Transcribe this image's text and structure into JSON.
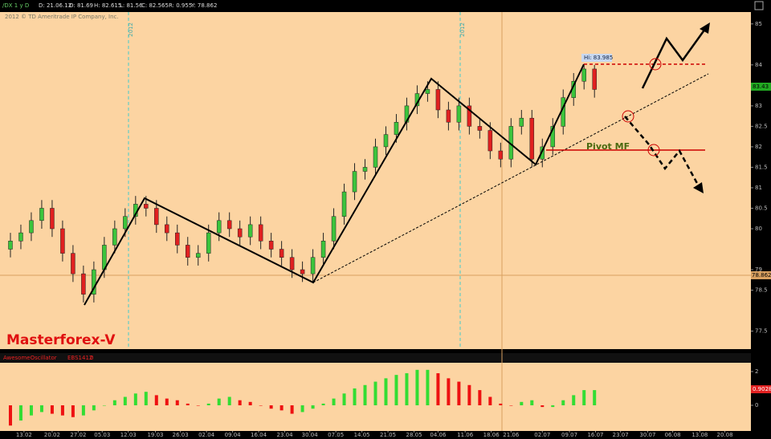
{
  "header": {
    "items": [
      "/DX 1 y D",
      "D: 21.06.12",
      "O: 81.69",
      "H: 82.615",
      "L: 81.56",
      "C: 82.565",
      "R: 0.955",
      "Y: 78.862"
    ],
    "copyright": "2012 © TD Ameritrade IP Company, Inc."
  },
  "price_labels": {
    "last": "83.43",
    "cursor": "78.862"
  },
  "annotations": {
    "brand": "Masterforex-V",
    "pivot": "Pivot MF",
    "high": "Hi: 83.985",
    "period_markers": [
      "2012",
      "2012"
    ]
  },
  "oscillator_header": [
    "AwesomeOscillator",
    "EBS1412",
    "0"
  ],
  "chart_data": [
    {
      "type": "candlestick",
      "up_color": "#3cc43c",
      "down_color": "#e02020",
      "x": [
        0,
        1,
        2,
        3,
        4,
        5,
        6,
        7,
        8,
        9,
        10,
        11,
        12,
        13,
        14,
        15,
        16,
        17,
        18,
        19,
        20,
        21,
        22,
        23,
        24,
        25,
        26,
        27,
        28,
        29,
        30,
        31,
        32,
        33,
        34,
        35,
        36,
        37,
        38,
        39,
        40,
        41,
        42,
        43,
        44,
        45,
        46,
        47,
        48,
        49,
        50,
        51,
        52,
        53,
        54,
        55,
        56
      ],
      "open": [
        79.5,
        79.7,
        79.9,
        80.2,
        80.5,
        80.0,
        79.4,
        78.9,
        78.4,
        79.0,
        79.6,
        80.0,
        80.3,
        80.6,
        80.5,
        80.1,
        79.9,
        79.6,
        79.3,
        79.4,
        79.9,
        80.2,
        80.0,
        79.8,
        80.1,
        79.7,
        79.5,
        79.3,
        79.0,
        78.9,
        79.3,
        79.7,
        80.3,
        80.9,
        81.4,
        81.5,
        82.0,
        82.3,
        82.6,
        83.0,
        83.3,
        83.4,
        82.9,
        82.6,
        83.0,
        82.5,
        82.4,
        81.9,
        81.7,
        82.5,
        82.7,
        81.7,
        82.0,
        82.5,
        83.2,
        83.6,
        83.9
      ],
      "high": [
        79.9,
        80.1,
        80.4,
        80.7,
        80.7,
        80.2,
        79.6,
        79.1,
        79.2,
        79.8,
        80.2,
        80.5,
        80.8,
        80.8,
        80.7,
        80.3,
        80.1,
        79.8,
        79.6,
        80.1,
        80.4,
        80.4,
        80.2,
        80.3,
        80.3,
        79.9,
        79.7,
        79.5,
        79.2,
        79.5,
        79.9,
        80.5,
        81.1,
        81.6,
        81.7,
        82.2,
        82.5,
        82.8,
        83.2,
        83.5,
        83.6,
        83.6,
        83.1,
        83.2,
        83.2,
        82.7,
        82.6,
        82.1,
        82.7,
        82.9,
        82.9,
        82.2,
        82.7,
        83.4,
        83.8,
        84.0,
        84.0
      ],
      "low": [
        79.3,
        79.5,
        79.7,
        80.0,
        79.8,
        79.2,
        78.7,
        78.2,
        78.2,
        78.8,
        79.4,
        79.8,
        80.1,
        80.3,
        79.9,
        79.7,
        79.4,
        79.1,
        79.1,
        79.2,
        79.7,
        79.8,
        79.6,
        79.6,
        79.5,
        79.3,
        79.1,
        78.8,
        78.7,
        78.7,
        79.1,
        79.5,
        80.1,
        80.7,
        81.2,
        81.3,
        81.8,
        82.1,
        82.4,
        82.8,
        83.1,
        82.7,
        82.4,
        82.4,
        82.3,
        82.2,
        81.7,
        81.5,
        81.5,
        82.3,
        81.5,
        81.5,
        81.8,
        82.3,
        83.0,
        83.4,
        83.2
      ],
      "close": [
        79.7,
        79.9,
        80.2,
        80.5,
        80.0,
        79.4,
        78.9,
        78.4,
        79.0,
        79.6,
        80.0,
        80.3,
        80.6,
        80.5,
        80.1,
        79.9,
        79.6,
        79.3,
        79.4,
        79.9,
        80.2,
        80.0,
        79.8,
        80.1,
        79.7,
        79.5,
        79.3,
        79.0,
        78.9,
        79.3,
        79.7,
        80.3,
        80.9,
        81.4,
        81.5,
        82.0,
        82.3,
        82.6,
        83.0,
        83.3,
        83.4,
        82.9,
        82.6,
        83.0,
        82.5,
        82.4,
        81.9,
        81.7,
        82.5,
        82.7,
        81.7,
        82.0,
        82.5,
        83.2,
        83.6,
        83.9,
        83.4
      ],
      "xlim": [
        -1,
        71
      ],
      "ylim": [
        77.1,
        85.29
      ],
      "yticks": [
        85,
        84,
        83,
        82.5,
        82,
        81.5,
        81,
        80.5,
        80,
        79,
        78.5,
        77.5
      ],
      "xticks": [
        {
          "value": 1.3,
          "label": "13.02"
        },
        {
          "value": 4.0,
          "label": "20.02"
        },
        {
          "value": 6.5,
          "label": "27.02"
        },
        {
          "value": 8.8,
          "label": "05.03"
        },
        {
          "value": 11.3,
          "label": "12.03"
        },
        {
          "value": 13.9,
          "label": "19.03"
        },
        {
          "value": 16.3,
          "label": "26.03"
        },
        {
          "value": 18.8,
          "label": "02.04"
        },
        {
          "value": 21.3,
          "label": "09.04"
        },
        {
          "value": 23.8,
          "label": "16.04"
        },
        {
          "value": 26.3,
          "label": "23.04"
        },
        {
          "value": 28.7,
          "label": "30.04"
        },
        {
          "value": 31.2,
          "label": "07.05"
        },
        {
          "value": 33.7,
          "label": "14.05"
        },
        {
          "value": 36.2,
          "label": "21.05"
        },
        {
          "value": 38.7,
          "label": "28.05"
        },
        {
          "value": 41.0,
          "label": "04.06"
        },
        {
          "value": 43.6,
          "label": "11.06"
        },
        {
          "value": 46.1,
          "label": "18.06"
        },
        {
          "value": 48.0,
          "label": "21.06"
        },
        {
          "value": 51.0,
          "label": "02.07"
        },
        {
          "value": 53.6,
          "label": "09.07"
        },
        {
          "value": 56.1,
          "label": "16.07"
        },
        {
          "value": 58.5,
          "label": "23.07"
        },
        {
          "value": 61.1,
          "label": "30.07"
        },
        {
          "value": 63.5,
          "label": "06.08"
        },
        {
          "value": 66.1,
          "label": "13.08"
        },
        {
          "value": 68.5,
          "label": "20.08"
        }
      ]
    },
    {
      "type": "bar",
      "up_color": "#33dd33",
      "down_color": "#ee1111",
      "x": [
        0,
        1,
        2,
        3,
        4,
        5,
        6,
        7,
        8,
        9,
        10,
        11,
        12,
        13,
        14,
        15,
        16,
        17,
        18,
        19,
        20,
        21,
        22,
        23,
        24,
        25,
        26,
        27,
        28,
        29,
        30,
        31,
        32,
        33,
        34,
        35,
        36,
        37,
        38,
        39,
        40,
        41,
        42,
        43,
        44,
        45,
        46,
        47,
        48,
        49,
        50,
        51,
        52,
        53,
        54,
        55,
        56
      ],
      "values": [
        -1.2,
        -0.9,
        -0.6,
        -0.4,
        -0.5,
        -0.6,
        -0.7,
        -0.6,
        -0.3,
        0.0,
        0.3,
        0.5,
        0.7,
        0.8,
        0.6,
        0.4,
        0.3,
        0.1,
        0.0,
        0.1,
        0.4,
        0.5,
        0.3,
        0.2,
        0.0,
        -0.2,
        -0.3,
        -0.5,
        -0.4,
        -0.2,
        0.1,
        0.4,
        0.7,
        1.0,
        1.2,
        1.4,
        1.6,
        1.8,
        1.9,
        2.1,
        2.1,
        1.9,
        1.6,
        1.4,
        1.2,
        0.9,
        0.5,
        0.1,
        0.0,
        0.2,
        0.3,
        -0.1,
        -0.1,
        0.3,
        0.6,
        0.9,
        0.9
      ],
      "last_label": "0.9028",
      "xlim": [
        -1,
        71
      ],
      "ylim": [
        -1.52,
        2.52
      ],
      "yticks": [
        2,
        0
      ]
    }
  ]
}
